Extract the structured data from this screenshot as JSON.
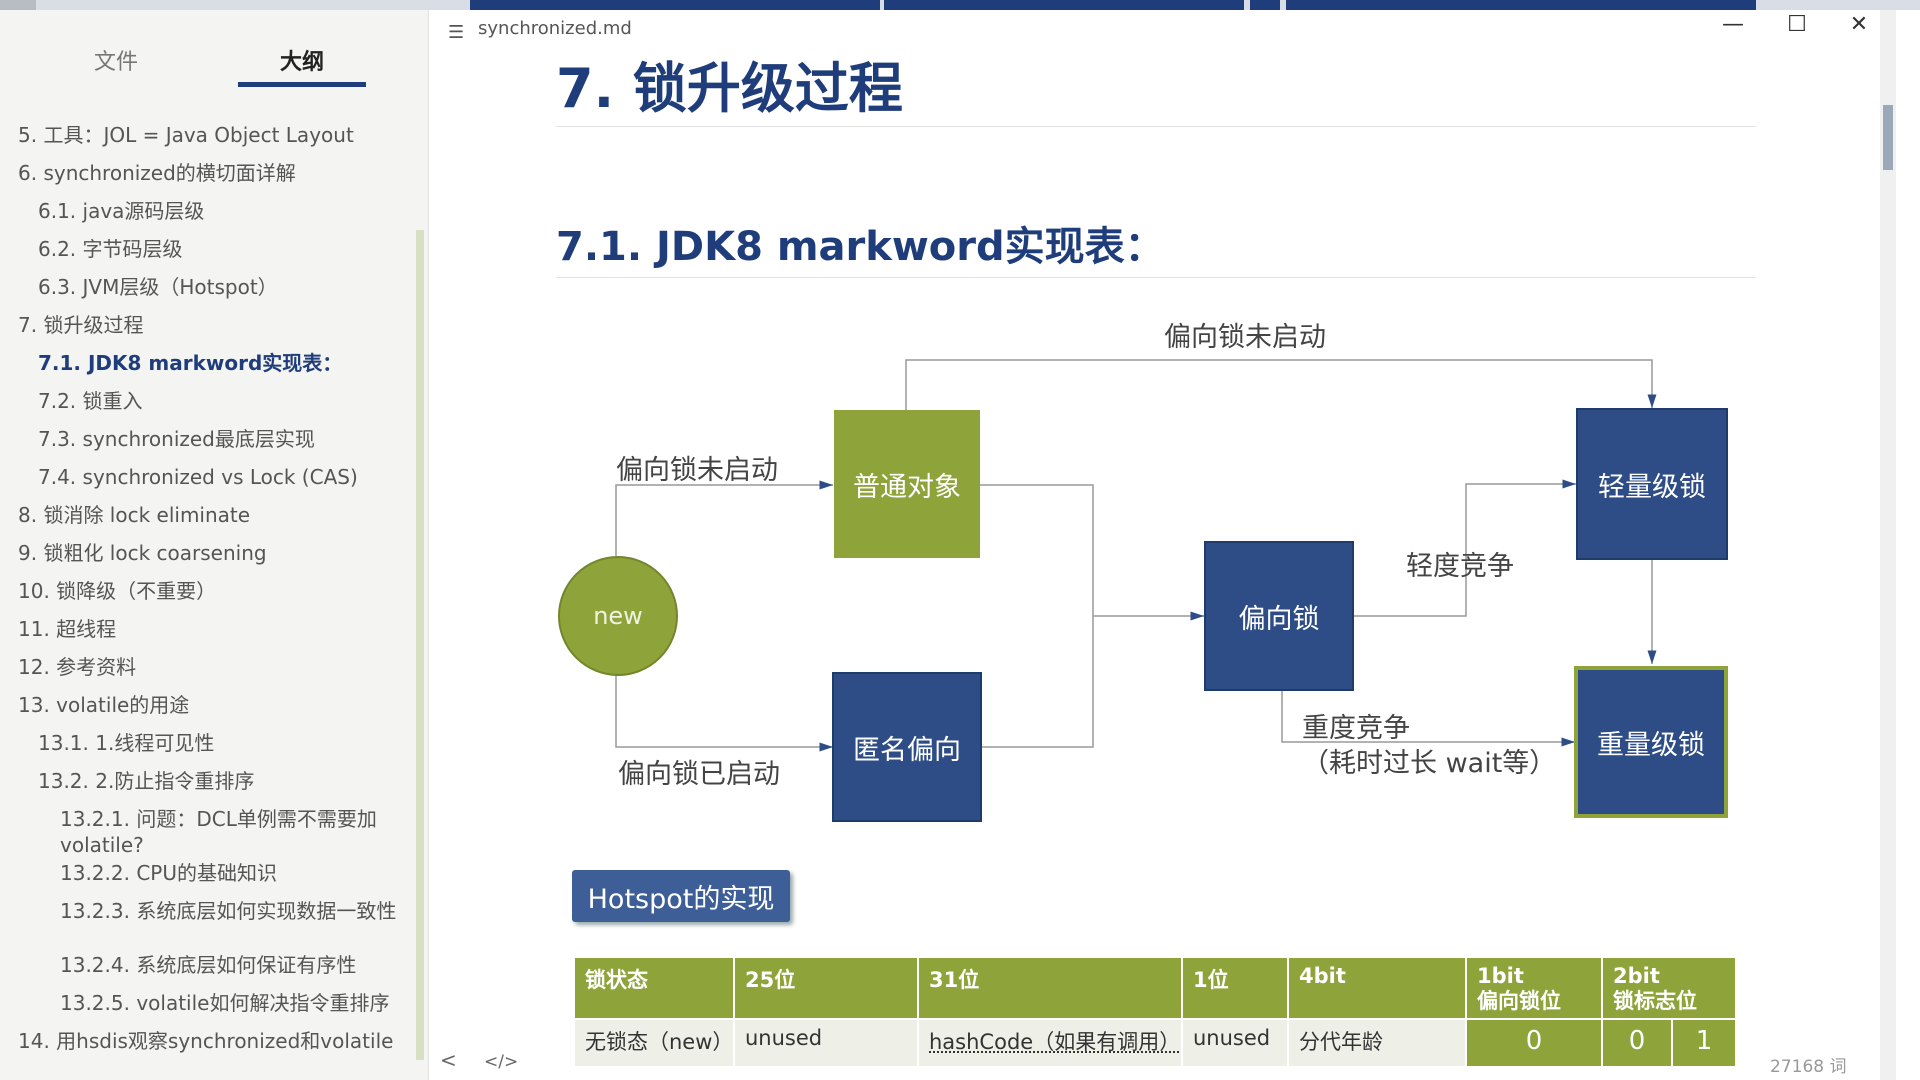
{
  "window": {
    "title": "synchronized.md"
  },
  "sidebar": {
    "tabs": [
      "文件",
      "大纲"
    ],
    "outline": [
      {
        "text": "5. 工具：JOL = Java Object Layout",
        "level": 0
      },
      {
        "text": "6. synchronized的横切面详解",
        "level": 0
      },
      {
        "text": "6.1. java源码层级",
        "level": 1
      },
      {
        "text": "6.2. 字节码层级",
        "level": 1
      },
      {
        "text": "6.3. JVM层级（Hotspot）",
        "level": 1
      },
      {
        "text": "7. 锁升级过程",
        "level": 0
      },
      {
        "text": "7.1. JDK8 markword实现表：",
        "level": 1,
        "active": true
      },
      {
        "text": "7.2. 锁重入",
        "level": 1
      },
      {
        "text": "7.3. synchronized最底层实现",
        "level": 1
      },
      {
        "text": "7.4. synchronized vs Lock (CAS)",
        "level": 1
      },
      {
        "text": "8. 锁消除 lock eliminate",
        "level": 0
      },
      {
        "text": "9. 锁粗化 lock coarsening",
        "level": 0
      },
      {
        "text": "10. 锁降级（不重要）",
        "level": 0
      },
      {
        "text": "11. 超线程",
        "level": 0
      },
      {
        "text": "12. 参考资料",
        "level": 0
      },
      {
        "text": "13. volatile的用途",
        "level": 0
      },
      {
        "text": "13.1. 1.线程可见性",
        "level": 1
      },
      {
        "text": "13.2. 2.防止指令重排序",
        "level": 1
      },
      {
        "text": "13.2.1. 问题：DCL单例需不需要加volatile?",
        "level": 2
      },
      {
        "text": "13.2.2. CPU的基础知识",
        "level": 2
      },
      {
        "text": "13.2.3. 系统底层如何实现数据一致性",
        "level": 2
      },
      {
        "text": "13.2.4. 系统底层如何保证有序性",
        "level": 2
      },
      {
        "text": "13.2.5. volatile如何解决指令重排序",
        "level": 2
      },
      {
        "text": "14. 用hsdis观察synchronized和volatile",
        "level": 0
      }
    ],
    "bottom_icons": [
      "<",
      "</>"
    ]
  },
  "content": {
    "h1": "7. 锁升级过程",
    "h2": "7.1. JDK8 markword实现表：",
    "diagram": {
      "new": "new",
      "normal_object": "普通对象",
      "anonymous_biased": "匿名偏向",
      "biased_lock": "偏向锁",
      "light_lock": "轻量级锁",
      "heavy_lock": "重量级锁",
      "label_top": "偏向锁未启动",
      "label_left_top": "偏向锁未启动",
      "label_left_bottom": "偏向锁已启动",
      "label_light": "轻度竞争",
      "label_heavy_1": "重度竞争",
      "label_heavy_2": "（耗时过长 wait等）"
    },
    "hotspot_button": "Hotspot的实现",
    "table": {
      "headers": [
        "锁状态",
        "25位",
        "31位",
        "1位",
        "4bit",
        "1bit\n偏向锁位",
        "2bit\n锁标志位"
      ],
      "row": [
        "无锁态（new）",
        "unused",
        "hashCode（如果有调用）",
        "unused",
        "分代年龄",
        "0",
        "0",
        "1"
      ]
    },
    "word_count": "27168 词"
  },
  "colors": {
    "accent": "#1f3d7a",
    "green": "#8fa33b",
    "blue_box": "#2e4d86"
  }
}
